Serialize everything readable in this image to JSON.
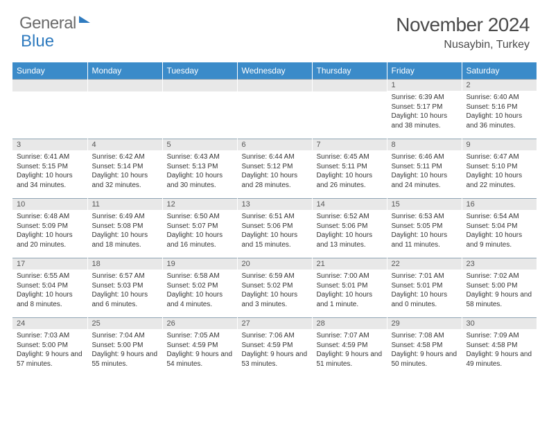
{
  "logo": {
    "word1": "General",
    "word2": "Blue"
  },
  "title": {
    "month": "November 2024",
    "location": "Nusaybin, Turkey"
  },
  "calendar": {
    "header_bg": "#3b8bc9",
    "header_fg": "#ffffff",
    "daynum_bg": "#e8e8e8",
    "border_color": "#8fa4b3",
    "days_of_week": [
      "Sunday",
      "Monday",
      "Tuesday",
      "Wednesday",
      "Thursday",
      "Friday",
      "Saturday"
    ],
    "weeks": [
      [
        null,
        null,
        null,
        null,
        null,
        {
          "n": "1",
          "sr": "Sunrise: 6:39 AM",
          "ss": "Sunset: 5:17 PM",
          "dl": "Daylight: 10 hours and 38 minutes."
        },
        {
          "n": "2",
          "sr": "Sunrise: 6:40 AM",
          "ss": "Sunset: 5:16 PM",
          "dl": "Daylight: 10 hours and 36 minutes."
        }
      ],
      [
        {
          "n": "3",
          "sr": "Sunrise: 6:41 AM",
          "ss": "Sunset: 5:15 PM",
          "dl": "Daylight: 10 hours and 34 minutes."
        },
        {
          "n": "4",
          "sr": "Sunrise: 6:42 AM",
          "ss": "Sunset: 5:14 PM",
          "dl": "Daylight: 10 hours and 32 minutes."
        },
        {
          "n": "5",
          "sr": "Sunrise: 6:43 AM",
          "ss": "Sunset: 5:13 PM",
          "dl": "Daylight: 10 hours and 30 minutes."
        },
        {
          "n": "6",
          "sr": "Sunrise: 6:44 AM",
          "ss": "Sunset: 5:12 PM",
          "dl": "Daylight: 10 hours and 28 minutes."
        },
        {
          "n": "7",
          "sr": "Sunrise: 6:45 AM",
          "ss": "Sunset: 5:11 PM",
          "dl": "Daylight: 10 hours and 26 minutes."
        },
        {
          "n": "8",
          "sr": "Sunrise: 6:46 AM",
          "ss": "Sunset: 5:11 PM",
          "dl": "Daylight: 10 hours and 24 minutes."
        },
        {
          "n": "9",
          "sr": "Sunrise: 6:47 AM",
          "ss": "Sunset: 5:10 PM",
          "dl": "Daylight: 10 hours and 22 minutes."
        }
      ],
      [
        {
          "n": "10",
          "sr": "Sunrise: 6:48 AM",
          "ss": "Sunset: 5:09 PM",
          "dl": "Daylight: 10 hours and 20 minutes."
        },
        {
          "n": "11",
          "sr": "Sunrise: 6:49 AM",
          "ss": "Sunset: 5:08 PM",
          "dl": "Daylight: 10 hours and 18 minutes."
        },
        {
          "n": "12",
          "sr": "Sunrise: 6:50 AM",
          "ss": "Sunset: 5:07 PM",
          "dl": "Daylight: 10 hours and 16 minutes."
        },
        {
          "n": "13",
          "sr": "Sunrise: 6:51 AM",
          "ss": "Sunset: 5:06 PM",
          "dl": "Daylight: 10 hours and 15 minutes."
        },
        {
          "n": "14",
          "sr": "Sunrise: 6:52 AM",
          "ss": "Sunset: 5:06 PM",
          "dl": "Daylight: 10 hours and 13 minutes."
        },
        {
          "n": "15",
          "sr": "Sunrise: 6:53 AM",
          "ss": "Sunset: 5:05 PM",
          "dl": "Daylight: 10 hours and 11 minutes."
        },
        {
          "n": "16",
          "sr": "Sunrise: 6:54 AM",
          "ss": "Sunset: 5:04 PM",
          "dl": "Daylight: 10 hours and 9 minutes."
        }
      ],
      [
        {
          "n": "17",
          "sr": "Sunrise: 6:55 AM",
          "ss": "Sunset: 5:04 PM",
          "dl": "Daylight: 10 hours and 8 minutes."
        },
        {
          "n": "18",
          "sr": "Sunrise: 6:57 AM",
          "ss": "Sunset: 5:03 PM",
          "dl": "Daylight: 10 hours and 6 minutes."
        },
        {
          "n": "19",
          "sr": "Sunrise: 6:58 AM",
          "ss": "Sunset: 5:02 PM",
          "dl": "Daylight: 10 hours and 4 minutes."
        },
        {
          "n": "20",
          "sr": "Sunrise: 6:59 AM",
          "ss": "Sunset: 5:02 PM",
          "dl": "Daylight: 10 hours and 3 minutes."
        },
        {
          "n": "21",
          "sr": "Sunrise: 7:00 AM",
          "ss": "Sunset: 5:01 PM",
          "dl": "Daylight: 10 hours and 1 minute."
        },
        {
          "n": "22",
          "sr": "Sunrise: 7:01 AM",
          "ss": "Sunset: 5:01 PM",
          "dl": "Daylight: 10 hours and 0 minutes."
        },
        {
          "n": "23",
          "sr": "Sunrise: 7:02 AM",
          "ss": "Sunset: 5:00 PM",
          "dl": "Daylight: 9 hours and 58 minutes."
        }
      ],
      [
        {
          "n": "24",
          "sr": "Sunrise: 7:03 AM",
          "ss": "Sunset: 5:00 PM",
          "dl": "Daylight: 9 hours and 57 minutes."
        },
        {
          "n": "25",
          "sr": "Sunrise: 7:04 AM",
          "ss": "Sunset: 5:00 PM",
          "dl": "Daylight: 9 hours and 55 minutes."
        },
        {
          "n": "26",
          "sr": "Sunrise: 7:05 AM",
          "ss": "Sunset: 4:59 PM",
          "dl": "Daylight: 9 hours and 54 minutes."
        },
        {
          "n": "27",
          "sr": "Sunrise: 7:06 AM",
          "ss": "Sunset: 4:59 PM",
          "dl": "Daylight: 9 hours and 53 minutes."
        },
        {
          "n": "28",
          "sr": "Sunrise: 7:07 AM",
          "ss": "Sunset: 4:59 PM",
          "dl": "Daylight: 9 hours and 51 minutes."
        },
        {
          "n": "29",
          "sr": "Sunrise: 7:08 AM",
          "ss": "Sunset: 4:58 PM",
          "dl": "Daylight: 9 hours and 50 minutes."
        },
        {
          "n": "30",
          "sr": "Sunrise: 7:09 AM",
          "ss": "Sunset: 4:58 PM",
          "dl": "Daylight: 9 hours and 49 minutes."
        }
      ]
    ]
  }
}
